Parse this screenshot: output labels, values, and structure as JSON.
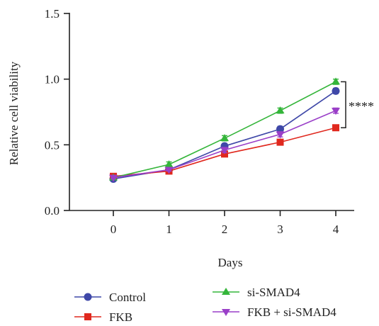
{
  "chart_data": {
    "type": "line",
    "xlabel": "Days",
    "ylabel": "Relative cell viability",
    "x": [
      0,
      1,
      2,
      3,
      4
    ],
    "xticks": [
      "0",
      "1",
      "2",
      "3",
      "4"
    ],
    "yticks": [
      "0.0",
      "0.5",
      "1.0",
      "1.5"
    ],
    "ylim": [
      0,
      1.5
    ],
    "significance": "****",
    "legend_position": "bottom",
    "series": [
      {
        "name": "Control",
        "values": [
          0.24,
          0.31,
          0.49,
          0.62,
          0.91
        ],
        "errors": [
          0.01,
          0.01,
          0.02,
          0.02,
          0.02
        ],
        "color": "#3f48a8",
        "marker": "circle"
      },
      {
        "name": "FKB",
        "values": [
          0.26,
          0.3,
          0.43,
          0.52,
          0.63
        ],
        "errors": [
          0.01,
          0.01,
          0.01,
          0.01,
          0.01
        ],
        "color": "#e0281e",
        "marker": "square"
      },
      {
        "name": "si-SMAD4",
        "values": [
          0.25,
          0.35,
          0.55,
          0.76,
          0.98
        ],
        "errors": [
          0.01,
          0.02,
          0.02,
          0.02,
          0.02
        ],
        "color": "#34b53a",
        "marker": "triangle-up"
      },
      {
        "name": "FKB + si-SMAD4",
        "values": [
          0.25,
          0.31,
          0.46,
          0.58,
          0.76
        ],
        "errors": [
          0.01,
          0.01,
          0.02,
          0.02,
          0.02
        ],
        "color": "#9a3fc8",
        "marker": "triangle-down"
      }
    ]
  }
}
